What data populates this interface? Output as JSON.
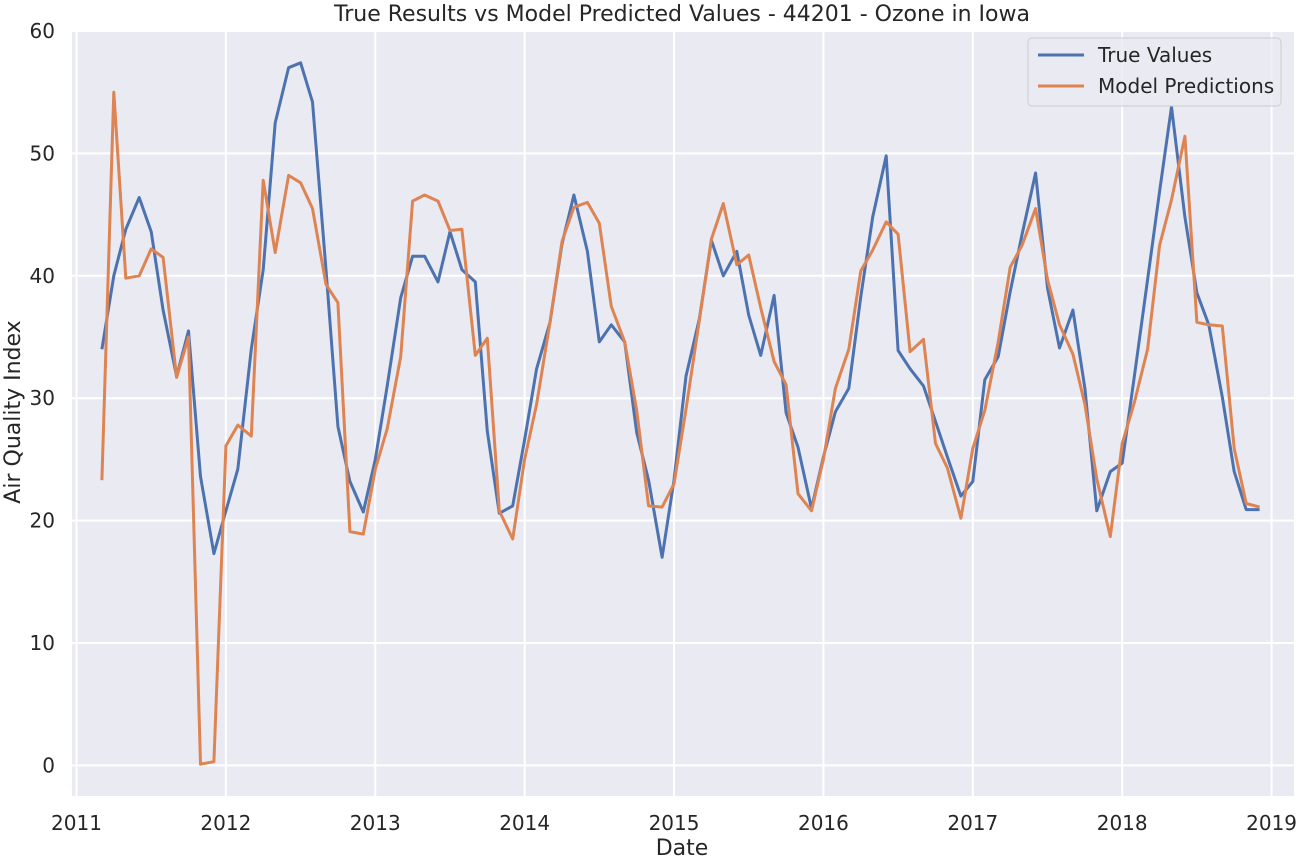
{
  "chart_data": {
    "type": "line",
    "title": "True Results vs Model Predicted Values - 44201 - Ozone in Iowa",
    "xlabel": "Date",
    "ylabel": "Air Quality Index",
    "xlim": [
      2010.97,
      2019.15
    ],
    "ylim": [
      -2.5,
      60
    ],
    "grid": true,
    "legend_position": "top-right",
    "x_ticks": [
      2011,
      2012,
      2013,
      2014,
      2015,
      2016,
      2017,
      2018,
      2019
    ],
    "x_tick_labels": [
      "2011",
      "2012",
      "2013",
      "2014",
      "2015",
      "2016",
      "2017",
      "2018",
      "2019"
    ],
    "y_ticks": [
      0,
      10,
      20,
      30,
      40,
      50,
      60
    ],
    "y_tick_labels": [
      "0",
      "10",
      "20",
      "30",
      "40",
      "50",
      "60"
    ],
    "background_color": "#EAEAF2",
    "series": [
      {
        "name": "True Values",
        "color": "#4C72B0",
        "points": [
          [
            2011.17,
            34.0
          ],
          [
            2011.25,
            40.0
          ],
          [
            2011.33,
            43.8
          ],
          [
            2011.42,
            46.4
          ],
          [
            2011.5,
            43.6
          ],
          [
            2011.58,
            37.2
          ],
          [
            2011.67,
            31.8
          ],
          [
            2011.75,
            35.5
          ],
          [
            2011.83,
            23.6
          ],
          [
            2011.92,
            17.3
          ],
          [
            2012.0,
            20.8
          ],
          [
            2012.08,
            24.2
          ],
          [
            2012.17,
            34.0
          ],
          [
            2012.25,
            40.5
          ],
          [
            2012.33,
            52.5
          ],
          [
            2012.42,
            57.0
          ],
          [
            2012.5,
            57.4
          ],
          [
            2012.58,
            54.2
          ],
          [
            2012.67,
            40.5
          ],
          [
            2012.75,
            27.7
          ],
          [
            2012.83,
            23.2
          ],
          [
            2012.92,
            20.7
          ],
          [
            2013.0,
            25.0
          ],
          [
            2013.08,
            31.0
          ],
          [
            2013.17,
            38.2
          ],
          [
            2013.25,
            41.6
          ],
          [
            2013.33,
            41.6
          ],
          [
            2013.42,
            39.5
          ],
          [
            2013.5,
            43.6
          ],
          [
            2013.58,
            40.5
          ],
          [
            2013.67,
            39.5
          ],
          [
            2013.75,
            27.3
          ],
          [
            2013.83,
            20.6
          ],
          [
            2013.92,
            21.2
          ],
          [
            2014.0,
            26.6
          ],
          [
            2014.08,
            32.4
          ],
          [
            2014.17,
            36.2
          ],
          [
            2014.25,
            42.6
          ],
          [
            2014.33,
            46.6
          ],
          [
            2014.42,
            42.0
          ],
          [
            2014.5,
            34.6
          ],
          [
            2014.58,
            36.0
          ],
          [
            2014.67,
            34.6
          ],
          [
            2014.75,
            27.2
          ],
          [
            2014.83,
            23.3
          ],
          [
            2014.92,
            17.0
          ],
          [
            2015.0,
            23.3
          ],
          [
            2015.08,
            31.8
          ],
          [
            2015.17,
            36.5
          ],
          [
            2015.25,
            42.9
          ],
          [
            2015.33,
            40.0
          ],
          [
            2015.42,
            42.0
          ],
          [
            2015.5,
            36.8
          ],
          [
            2015.58,
            33.5
          ],
          [
            2015.67,
            38.4
          ],
          [
            2015.75,
            28.8
          ],
          [
            2015.83,
            26.0
          ],
          [
            2015.92,
            21.0
          ],
          [
            2016.0,
            25.2
          ],
          [
            2016.08,
            28.9
          ],
          [
            2016.17,
            30.8
          ],
          [
            2016.25,
            38.3
          ],
          [
            2016.33,
            44.8
          ],
          [
            2016.42,
            49.8
          ],
          [
            2016.5,
            33.9
          ],
          [
            2016.58,
            32.4
          ],
          [
            2016.67,
            31.0
          ],
          [
            2016.75,
            28.1
          ],
          [
            2016.83,
            25.2
          ],
          [
            2016.92,
            22.0
          ],
          [
            2017.0,
            23.2
          ],
          [
            2017.08,
            31.5
          ],
          [
            2017.17,
            33.4
          ],
          [
            2017.25,
            38.7
          ],
          [
            2017.33,
            43.4
          ],
          [
            2017.42,
            48.4
          ],
          [
            2017.5,
            39.0
          ],
          [
            2017.58,
            34.1
          ],
          [
            2017.67,
            37.2
          ],
          [
            2017.75,
            30.8
          ],
          [
            2017.83,
            20.8
          ],
          [
            2017.92,
            24.0
          ],
          [
            2018.0,
            24.7
          ],
          [
            2018.08,
            31.7
          ],
          [
            2018.17,
            39.7
          ],
          [
            2018.25,
            46.9
          ],
          [
            2018.33,
            53.8
          ],
          [
            2018.42,
            44.8
          ],
          [
            2018.5,
            38.6
          ],
          [
            2018.58,
            36.0
          ],
          [
            2018.67,
            30.1
          ],
          [
            2018.75,
            24.0
          ],
          [
            2018.83,
            20.9
          ],
          [
            2018.92,
            20.9
          ]
        ]
      },
      {
        "name": "Model Predictions",
        "color": "#DD8452",
        "points": [
          [
            2011.17,
            23.3
          ],
          [
            2011.25,
            55.0
          ],
          [
            2011.33,
            39.8
          ],
          [
            2011.42,
            40.0
          ],
          [
            2011.5,
            42.2
          ],
          [
            2011.58,
            41.5
          ],
          [
            2011.67,
            31.7
          ],
          [
            2011.75,
            35.0
          ],
          [
            2011.83,
            0.1
          ],
          [
            2011.92,
            0.3
          ],
          [
            2012.0,
            26.1
          ],
          [
            2012.08,
            27.8
          ],
          [
            2012.17,
            26.9
          ],
          [
            2012.25,
            47.8
          ],
          [
            2012.33,
            41.9
          ],
          [
            2012.42,
            48.2
          ],
          [
            2012.5,
            47.6
          ],
          [
            2012.58,
            45.5
          ],
          [
            2012.67,
            39.3
          ],
          [
            2012.75,
            37.8
          ],
          [
            2012.83,
            19.1
          ],
          [
            2012.92,
            18.9
          ],
          [
            2013.0,
            24.2
          ],
          [
            2013.08,
            27.5
          ],
          [
            2013.17,
            33.4
          ],
          [
            2013.25,
            46.1
          ],
          [
            2013.33,
            46.6
          ],
          [
            2013.42,
            46.1
          ],
          [
            2013.5,
            43.7
          ],
          [
            2013.58,
            43.8
          ],
          [
            2013.67,
            33.5
          ],
          [
            2013.75,
            34.9
          ],
          [
            2013.83,
            20.8
          ],
          [
            2013.92,
            18.5
          ],
          [
            2014.0,
            25.0
          ],
          [
            2014.08,
            29.5
          ],
          [
            2014.17,
            36.2
          ],
          [
            2014.25,
            42.8
          ],
          [
            2014.33,
            45.6
          ],
          [
            2014.42,
            46.0
          ],
          [
            2014.5,
            44.3
          ],
          [
            2014.58,
            37.5
          ],
          [
            2014.67,
            34.6
          ],
          [
            2014.75,
            29.0
          ],
          [
            2014.83,
            21.2
          ],
          [
            2014.92,
            21.1
          ],
          [
            2015.0,
            23.0
          ],
          [
            2015.08,
            29.1
          ],
          [
            2015.17,
            36.4
          ],
          [
            2015.25,
            43.0
          ],
          [
            2015.33,
            45.9
          ],
          [
            2015.42,
            40.9
          ],
          [
            2015.5,
            41.7
          ],
          [
            2015.58,
            37.4
          ],
          [
            2015.67,
            33.0
          ],
          [
            2015.75,
            31.1
          ],
          [
            2015.83,
            22.2
          ],
          [
            2015.92,
            20.8
          ],
          [
            2016.0,
            25.0
          ],
          [
            2016.08,
            30.8
          ],
          [
            2016.17,
            34.0
          ],
          [
            2016.25,
            40.4
          ],
          [
            2016.33,
            42.1
          ],
          [
            2016.42,
            44.4
          ],
          [
            2016.5,
            43.4
          ],
          [
            2016.58,
            33.8
          ],
          [
            2016.67,
            34.8
          ],
          [
            2016.75,
            26.3
          ],
          [
            2016.83,
            24.3
          ],
          [
            2016.92,
            20.2
          ],
          [
            2017.0,
            25.9
          ],
          [
            2017.08,
            29.0
          ],
          [
            2017.17,
            34.6
          ],
          [
            2017.25,
            40.7
          ],
          [
            2017.33,
            42.5
          ],
          [
            2017.42,
            45.5
          ],
          [
            2017.5,
            39.7
          ],
          [
            2017.58,
            36.0
          ],
          [
            2017.67,
            33.6
          ],
          [
            2017.75,
            29.5
          ],
          [
            2017.83,
            23.4
          ],
          [
            2017.92,
            18.7
          ],
          [
            2018.0,
            26.3
          ],
          [
            2018.08,
            29.6
          ],
          [
            2018.17,
            34.0
          ],
          [
            2018.25,
            42.5
          ],
          [
            2018.33,
            46.2
          ],
          [
            2018.42,
            51.4
          ],
          [
            2018.5,
            36.2
          ],
          [
            2018.58,
            36.0
          ],
          [
            2018.67,
            35.9
          ],
          [
            2018.75,
            25.9
          ],
          [
            2018.83,
            21.4
          ],
          [
            2018.92,
            21.1
          ]
        ]
      }
    ]
  }
}
